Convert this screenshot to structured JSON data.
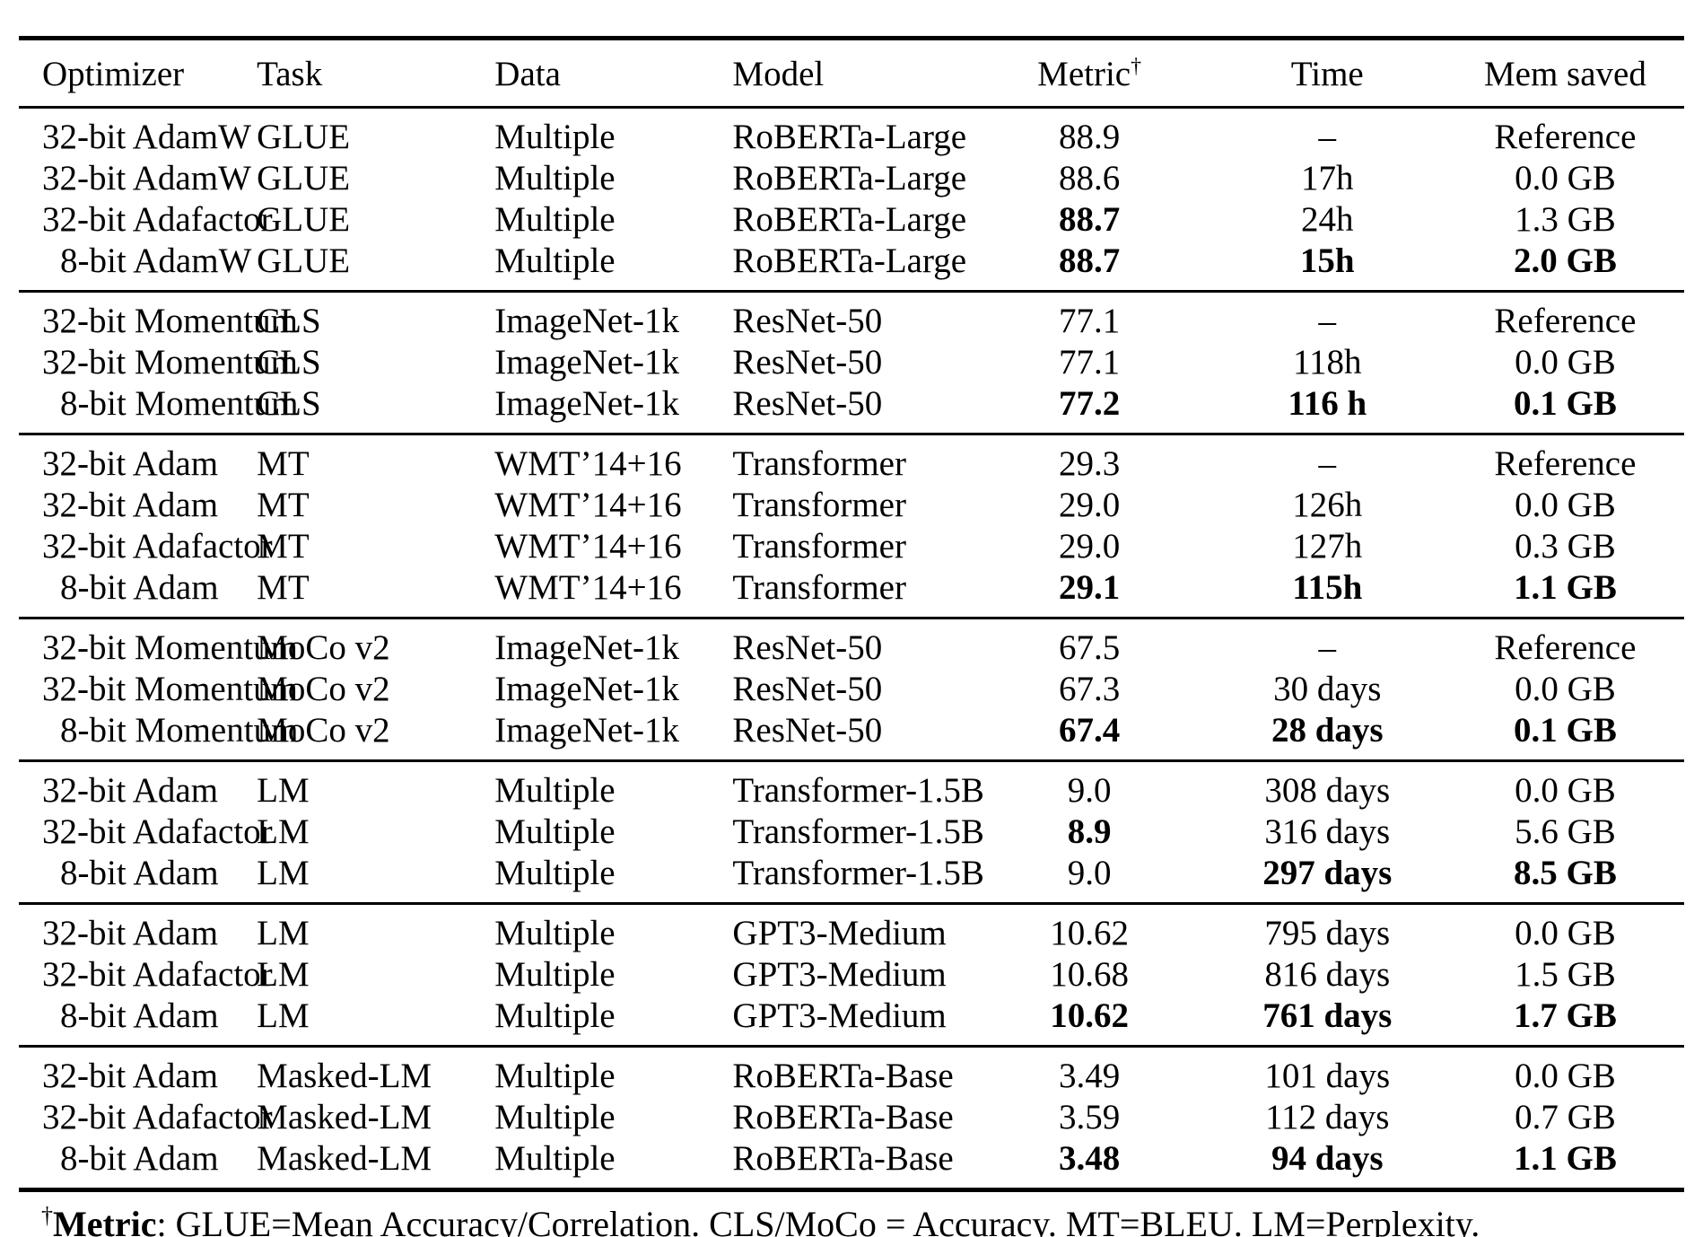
{
  "table": {
    "columns": [
      {
        "key": "optimizer",
        "label": "Optimizer",
        "align": "left"
      },
      {
        "key": "task",
        "label": "Task",
        "align": "left"
      },
      {
        "key": "data",
        "label": "Data",
        "align": "left"
      },
      {
        "key": "model",
        "label": "Model",
        "align": "left"
      },
      {
        "key": "metric",
        "label": "Metric",
        "sup": "†",
        "align": "center"
      },
      {
        "key": "time",
        "label": "Time",
        "align": "center"
      },
      {
        "key": "mem-saved",
        "label": "Mem saved",
        "align": "center"
      }
    ],
    "groups": [
      {
        "rows": [
          {
            "cells": [
              "32-bit AdamW",
              "GLUE",
              "Multiple",
              "RoBERTa-Large",
              "88.9",
              "–",
              "Reference"
            ],
            "bold": [],
            "indent": false
          },
          {
            "cells": [
              "32-bit AdamW",
              "GLUE",
              "Multiple",
              "RoBERTa-Large",
              "88.6",
              "17h",
              "0.0 GB"
            ],
            "bold": [],
            "indent": false
          },
          {
            "cells": [
              "32-bit Adafactor",
              "GLUE",
              "Multiple",
              "RoBERTa-Large",
              "88.7",
              "24h",
              "1.3 GB"
            ],
            "bold": [
              4
            ],
            "indent": false
          },
          {
            "cells": [
              "8-bit AdamW",
              "GLUE",
              "Multiple",
              "RoBERTa-Large",
              "88.7",
              "15h",
              "2.0 GB"
            ],
            "bold": [
              4,
              5,
              6
            ],
            "indent": true
          }
        ]
      },
      {
        "rows": [
          {
            "cells": [
              "32-bit Momentum",
              "CLS",
              "ImageNet-1k",
              "ResNet-50",
              "77.1",
              "–",
              "Reference"
            ],
            "bold": [],
            "indent": false
          },
          {
            "cells": [
              "32-bit Momentum",
              "CLS",
              "ImageNet-1k",
              "ResNet-50",
              "77.1",
              "118h",
              "0.0 GB"
            ],
            "bold": [],
            "indent": false
          },
          {
            "cells": [
              "8-bit Momentum",
              "CLS",
              "ImageNet-1k",
              "ResNet-50",
              "77.2",
              "116 h",
              "0.1 GB"
            ],
            "bold": [
              4,
              5,
              6
            ],
            "indent": true
          }
        ]
      },
      {
        "rows": [
          {
            "cells": [
              "32-bit Adam",
              "MT",
              "WMT’14+16",
              "Transformer",
              "29.3",
              "–",
              "Reference"
            ],
            "bold": [],
            "indent": false
          },
          {
            "cells": [
              "32-bit Adam",
              "MT",
              "WMT’14+16",
              "Transformer",
              "29.0",
              "126h",
              "0.0 GB"
            ],
            "bold": [],
            "indent": false
          },
          {
            "cells": [
              "32-bit Adafactor",
              "MT",
              "WMT’14+16",
              "Transformer",
              "29.0",
              "127h",
              "0.3 GB"
            ],
            "bold": [],
            "indent": false
          },
          {
            "cells": [
              "8-bit Adam",
              "MT",
              "WMT’14+16",
              "Transformer",
              "29.1",
              "115h",
              "1.1 GB"
            ],
            "bold": [
              4,
              5,
              6
            ],
            "indent": true
          }
        ]
      },
      {
        "rows": [
          {
            "cells": [
              "32-bit Momentum",
              "MoCo v2",
              "ImageNet-1k",
              "ResNet-50",
              "67.5",
              "–",
              "Reference"
            ],
            "bold": [],
            "indent": false
          },
          {
            "cells": [
              "32-bit Momentum",
              "MoCo v2",
              "ImageNet-1k",
              "ResNet-50",
              "67.3",
              "30 days",
              "0.0 GB"
            ],
            "bold": [],
            "indent": false
          },
          {
            "cells": [
              "8-bit Momentum",
              "MoCo v2",
              "ImageNet-1k",
              "ResNet-50",
              "67.4",
              "28 days",
              "0.1 GB"
            ],
            "bold": [
              4,
              5,
              6
            ],
            "indent": true
          }
        ]
      },
      {
        "rows": [
          {
            "cells": [
              "32-bit Adam",
              "LM",
              "Multiple",
              "Transformer-1.5B",
              "9.0",
              "308 days",
              "0.0 GB"
            ],
            "bold": [],
            "indent": false
          },
          {
            "cells": [
              "32-bit Adafactor",
              "LM",
              "Multiple",
              "Transformer-1.5B",
              "8.9",
              "316 days",
              "5.6 GB"
            ],
            "bold": [
              4
            ],
            "indent": false
          },
          {
            "cells": [
              "8-bit Adam",
              "LM",
              "Multiple",
              "Transformer-1.5B",
              "9.0",
              "297 days",
              "8.5 GB"
            ],
            "bold": [
              5,
              6
            ],
            "indent": true
          }
        ]
      },
      {
        "rows": [
          {
            "cells": [
              "32-bit Adam",
              "LM",
              "Multiple",
              "GPT3-Medium",
              "10.62",
              "795 days",
              "0.0 GB"
            ],
            "bold": [],
            "indent": false
          },
          {
            "cells": [
              "32-bit Adafactor",
              "LM",
              "Multiple",
              "GPT3-Medium",
              "10.68",
              "816 days",
              "1.5 GB"
            ],
            "bold": [],
            "indent": false
          },
          {
            "cells": [
              "8-bit Adam",
              "LM",
              "Multiple",
              "GPT3-Medium",
              "10.62",
              "761 days",
              "1.7 GB"
            ],
            "bold": [
              4,
              5,
              6
            ],
            "indent": true
          }
        ]
      },
      {
        "rows": [
          {
            "cells": [
              "32-bit Adam",
              "Masked-LM",
              "Multiple",
              "RoBERTa-Base",
              "3.49",
              "101 days",
              "0.0 GB"
            ],
            "bold": [],
            "indent": false
          },
          {
            "cells": [
              "32-bit Adafactor",
              "Masked-LM",
              "Multiple",
              "RoBERTa-Base",
              "3.59",
              "112 days",
              "0.7 GB"
            ],
            "bold": [],
            "indent": false
          },
          {
            "cells": [
              "8-bit Adam",
              "Masked-LM",
              "Multiple",
              "RoBERTa-Base",
              "3.48",
              "94 days",
              "1.1 GB"
            ],
            "bold": [
              4,
              5,
              6
            ],
            "indent": true
          }
        ]
      }
    ]
  },
  "footnote": {
    "dagger": "†",
    "label": "Metric",
    "text": ": GLUE=Mean Accuracy/Correlation. CLS/MoCo = Accuracy. MT=BLEU. LM=Perplexity."
  }
}
